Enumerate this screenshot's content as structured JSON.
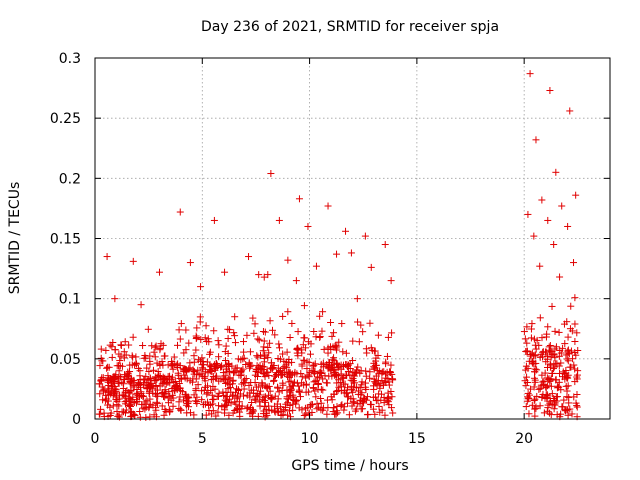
{
  "chart_data": {
    "type": "scatter",
    "title": "Day 236 of 2021, SRMTID for receiver spja",
    "xlabel": "GPS time / hours",
    "ylabel": "SRMTID / TECUs",
    "xlim": [
      0,
      24
    ],
    "ylim": [
      0,
      0.3
    ],
    "xticks": [
      0,
      5,
      10,
      15,
      20
    ],
    "yticks": [
      0,
      0.05,
      0.1,
      0.15,
      0.2,
      0.25,
      0.3
    ],
    "xtick_labels": [
      "0",
      "5",
      "10",
      "15",
      "20"
    ],
    "ytick_labels": [
      "0",
      "0.05",
      "0.1",
      "0.15",
      "0.2",
      "0.25",
      "0.3"
    ],
    "grid": true,
    "marker": "+",
    "series": [
      {
        "name": "SRMTID",
        "color": "#e00000",
        "clusters": [
          {
            "x_start": 0.2,
            "x_end": 3.5,
            "count": 330,
            "base": 0.022,
            "tail": 0.035,
            "peaks": [
              0.135,
              0.131,
              0.122,
              0.1,
              0.095
            ]
          },
          {
            "x_start": 3.5,
            "x_end": 7.8,
            "count": 360,
            "base": 0.028,
            "tail": 0.04,
            "peaks": [
              0.172,
              0.165,
              0.135,
              0.13,
              0.122,
              0.12,
              0.11,
              0.085
            ]
          },
          {
            "x_start": 7.8,
            "x_end": 11.4,
            "count": 330,
            "base": 0.03,
            "tail": 0.045,
            "peaks": [
              0.204,
              0.183,
              0.177,
              0.165,
              0.16,
              0.137,
              0.132,
              0.127,
              0.12,
              0.115
            ]
          },
          {
            "x_start": 11.4,
            "x_end": 13.9,
            "count": 190,
            "base": 0.028,
            "tail": 0.04,
            "peaks": [
              0.156,
              0.152,
              0.145,
              0.138,
              0.126,
              0.115,
              0.1
            ]
          },
          {
            "x_start": 20.0,
            "x_end": 22.5,
            "count": 230,
            "base": 0.035,
            "tail": 0.045,
            "peaks": [
              0.287,
              0.273,
              0.256,
              0.232,
              0.205,
              0.186,
              0.182,
              0.177,
              0.17,
              0.165,
              0.16,
              0.152,
              0.145,
              0.13,
              0.127,
              0.118
            ]
          }
        ]
      }
    ]
  }
}
